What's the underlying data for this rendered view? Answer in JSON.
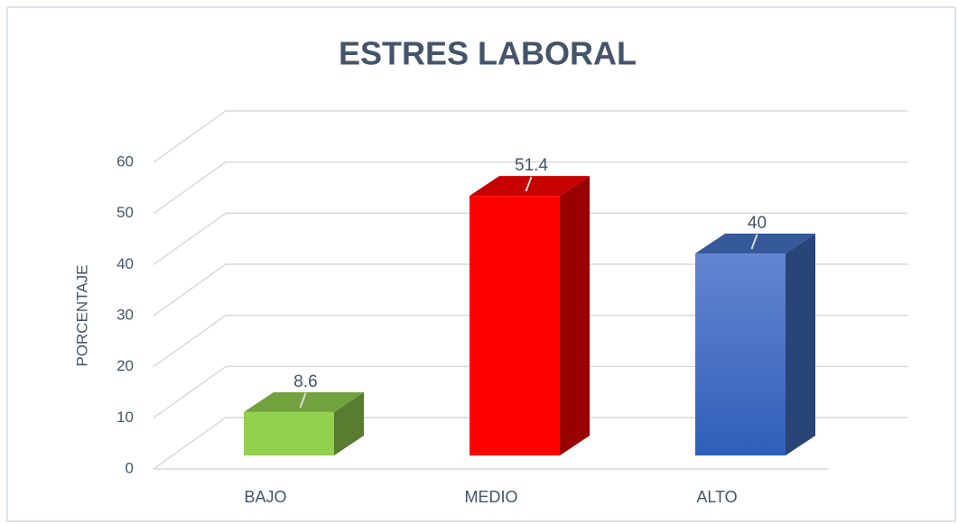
{
  "chart_data": {
    "type": "bar",
    "title": "ESTRES LABORAL",
    "y_label": "PORCENTAJE",
    "categories": [
      "BAJO",
      "MEDIO",
      "ALTO"
    ],
    "values": [
      8.6,
      51.4,
      40
    ],
    "colors": [
      "#92d050",
      "#ff0000",
      "#4472c4"
    ],
    "ylim": [
      0,
      60
    ],
    "yticks": [
      0,
      10,
      20,
      30,
      40,
      50,
      60
    ],
    "grid": true,
    "style": "3d"
  }
}
